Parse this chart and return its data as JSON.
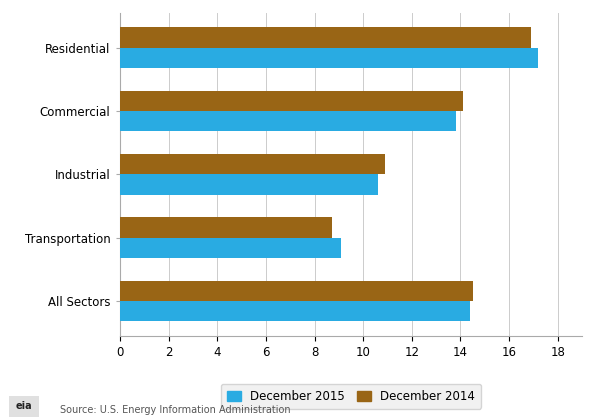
{
  "categories": [
    "All Sectors",
    "Transportation",
    "Industrial",
    "Commercial",
    "Residential"
  ],
  "dec2015": [
    14.4,
    9.1,
    10.6,
    13.8,
    17.2
  ],
  "dec2014": [
    14.5,
    8.7,
    10.9,
    14.1,
    16.9
  ],
  "color_2015": "#29ABE2",
  "color_2014": "#996515",
  "legend_2015": "December 2015",
  "legend_2014": "December 2014",
  "xlim": [
    0,
    19
  ],
  "xticks": [
    0,
    2,
    4,
    6,
    8,
    10,
    12,
    14,
    16,
    18
  ],
  "source_text": "Source: U.S. Energy Information Administration",
  "background_color": "#ffffff",
  "grid_color": "#cccccc"
}
